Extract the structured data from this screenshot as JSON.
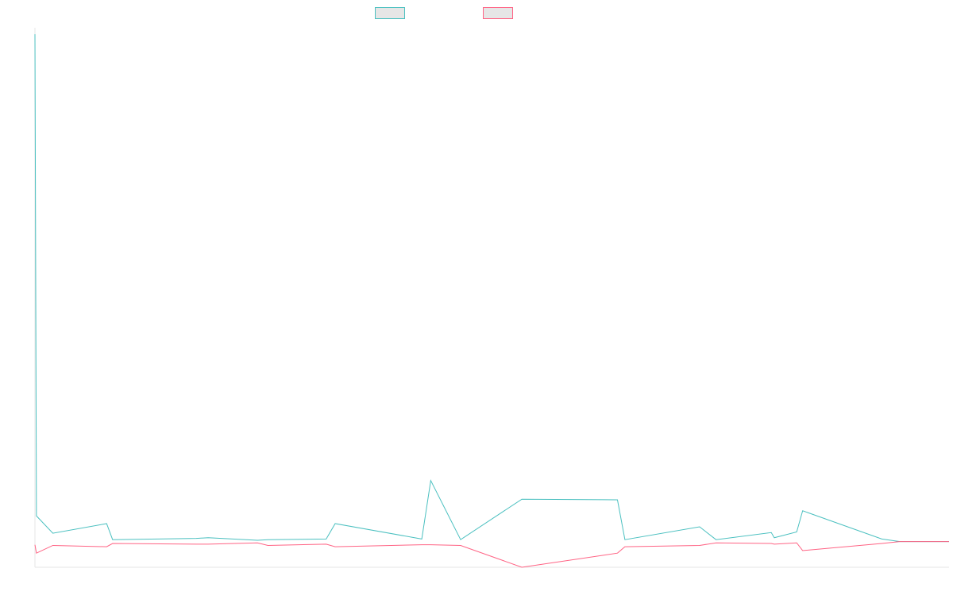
{
  "chart_data": {
    "type": "line",
    "title": "",
    "xlabel": "",
    "ylabel": "",
    "grid": false,
    "legend_position": "top-center",
    "x_index": [
      0,
      1,
      12,
      48,
      52,
      108,
      116,
      149,
      156,
      195,
      201,
      259,
      265,
      285,
      326,
      390,
      395,
      445,
      456,
      493,
      495,
      510,
      514,
      567,
      579,
      612
    ],
    "xlim": [
      0,
      612
    ],
    "ylim": [
      -4,
      80
    ],
    "series": [
      {
        "name": "",
        "color": "#4bc0c0",
        "values": [
          79,
          4,
          1.3,
          2.8,
          0.3,
          0.5,
          0.6,
          0.2,
          0.3,
          0.4,
          2.8,
          0.4,
          9.5,
          0.3,
          6.6,
          6.5,
          0.3,
          2.3,
          0.3,
          1.4,
          0.6,
          1.5,
          4.8,
          0.4,
          0,
          0
        ]
      },
      {
        "name": "",
        "color": "#ff6384",
        "values": [
          -0.5,
          -1.8,
          -0.6,
          -0.8,
          -0.3,
          -0.4,
          -0.4,
          -0.2,
          -0.6,
          -0.4,
          -0.8,
          -0.5,
          -0.5,
          -0.6,
          -4,
          -1.8,
          -0.8,
          -0.6,
          -0.2,
          -0.3,
          -0.4,
          -0.2,
          -1.4,
          -0.3,
          0,
          0
        ]
      }
    ]
  }
}
